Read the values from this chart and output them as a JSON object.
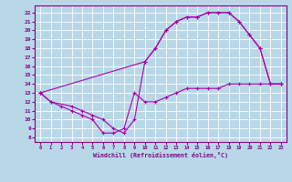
{
  "xlabel": "Windchill (Refroidissement éolien,°C)",
  "background_color": "#b8d8e8",
  "grid_color": "#ffffff",
  "line_color": "#aa00aa",
  "xlim": [
    -0.5,
    23.5
  ],
  "ylim": [
    7.5,
    22.8
  ],
  "xticks": [
    0,
    1,
    2,
    3,
    4,
    5,
    6,
    7,
    8,
    9,
    10,
    11,
    12,
    13,
    14,
    15,
    16,
    17,
    18,
    19,
    20,
    21,
    22,
    23
  ],
  "yticks": [
    8,
    9,
    10,
    11,
    12,
    13,
    14,
    15,
    16,
    17,
    18,
    19,
    20,
    21,
    22
  ],
  "line1_x": [
    0,
    1,
    2,
    3,
    4,
    5,
    6,
    7,
    8,
    9,
    10,
    11,
    12,
    13,
    14,
    15,
    16,
    17,
    18,
    19,
    20,
    21,
    22,
    23
  ],
  "line1_y": [
    13,
    12,
    11.5,
    11,
    10.5,
    10,
    8.5,
    8.5,
    9,
    13,
    12,
    12,
    12.5,
    13,
    13.5,
    13.5,
    13.5,
    13.5,
    14,
    14,
    14,
    14,
    14,
    14
  ],
  "line2_x": [
    0,
    1,
    3,
    4,
    5,
    6,
    7,
    8,
    9,
    10,
    11,
    12,
    13,
    14,
    15,
    16,
    17,
    18,
    19,
    20,
    21,
    22,
    23
  ],
  "line2_y": [
    13,
    12,
    11.5,
    11,
    10.5,
    10,
    9,
    8.5,
    10,
    16.5,
    18,
    20,
    21,
    21.5,
    21.5,
    22,
    22,
    22,
    21,
    19.5,
    18,
    14,
    14
  ],
  "line3_x": [
    0,
    10,
    11,
    12,
    13,
    14,
    15,
    16,
    17,
    18,
    19,
    20,
    21,
    22,
    23
  ],
  "line3_y": [
    13,
    16.5,
    18,
    20,
    21,
    21.5,
    21.5,
    22,
    22,
    22,
    21,
    19.5,
    18,
    14,
    14
  ],
  "marker": "+",
  "markersize": 3,
  "linewidth": 0.8
}
